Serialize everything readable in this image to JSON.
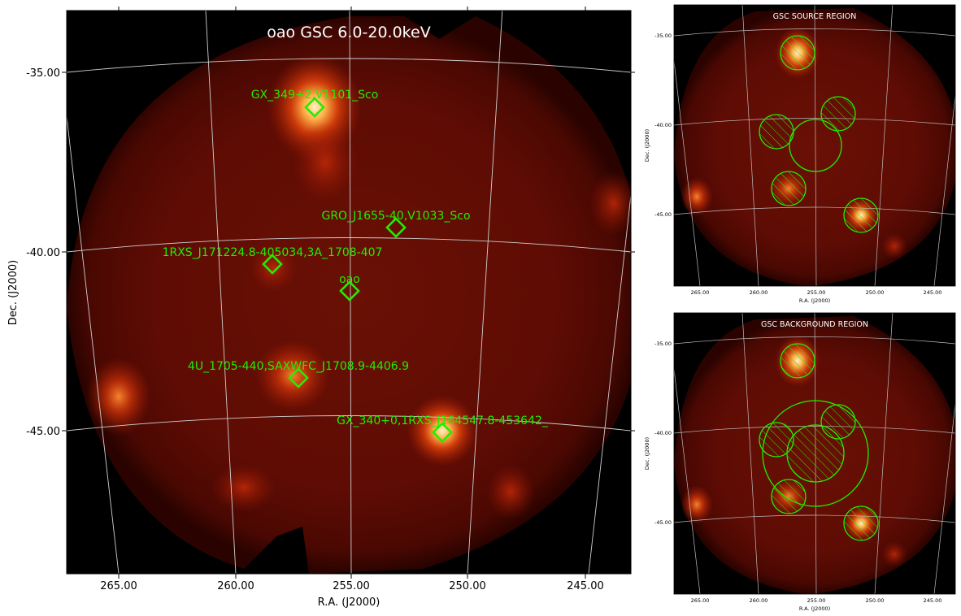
{
  "main": {
    "title": "oao GSC 6.0-20.0keV",
    "xlabel": "R.A. (J2000)",
    "ylabel": "Dec. (J2000)",
    "ra_ticks": [
      "265.00",
      "260.00",
      "255.00",
      "250.00",
      "245.00"
    ],
    "dec_ticks": [
      "-35.00",
      "-40.00",
      "-45.00"
    ],
    "sources": [
      {
        "label": "GX_349+2,V1101_Sco"
      },
      {
        "label": "GRO_J1655-40,V1033_Sco"
      },
      {
        "label": "1RXS_J171224.8-405034,3A_1708-407"
      },
      {
        "label": "oao"
      },
      {
        "label": "4U_1705-440,SAXWFC_J1708.9-4406.9"
      },
      {
        "label": "GX_340+0,1RXS_J164547.8-453642_"
      }
    ]
  },
  "source_panel": {
    "title": "GSC SOURCE REGION",
    "xlabel": "R.A. (J2000)",
    "ylabel": "Dec. (J2000)",
    "ra_ticks": [
      "265.00",
      "260.00",
      "255.00",
      "250.00",
      "245.00"
    ],
    "dec_ticks": [
      "-35.00",
      "-40.00",
      "-45.00"
    ]
  },
  "background_panel": {
    "title": "GSC BACKGROUND REGION",
    "xlabel": "R.A. (J2000)",
    "ylabel": "Dec. (J2000)",
    "ra_ticks": [
      "265.00",
      "260.00",
      "255.00",
      "250.00",
      "245.00"
    ],
    "dec_ticks": [
      "-35.00",
      "-40.00",
      "-45.00"
    ]
  },
  "colors": {
    "marker": "#22ee00",
    "grid": "#cccccc",
    "sky_background": "#000000",
    "field_dim": "#5a0a03",
    "field_bright": "#ffe8b0"
  }
}
